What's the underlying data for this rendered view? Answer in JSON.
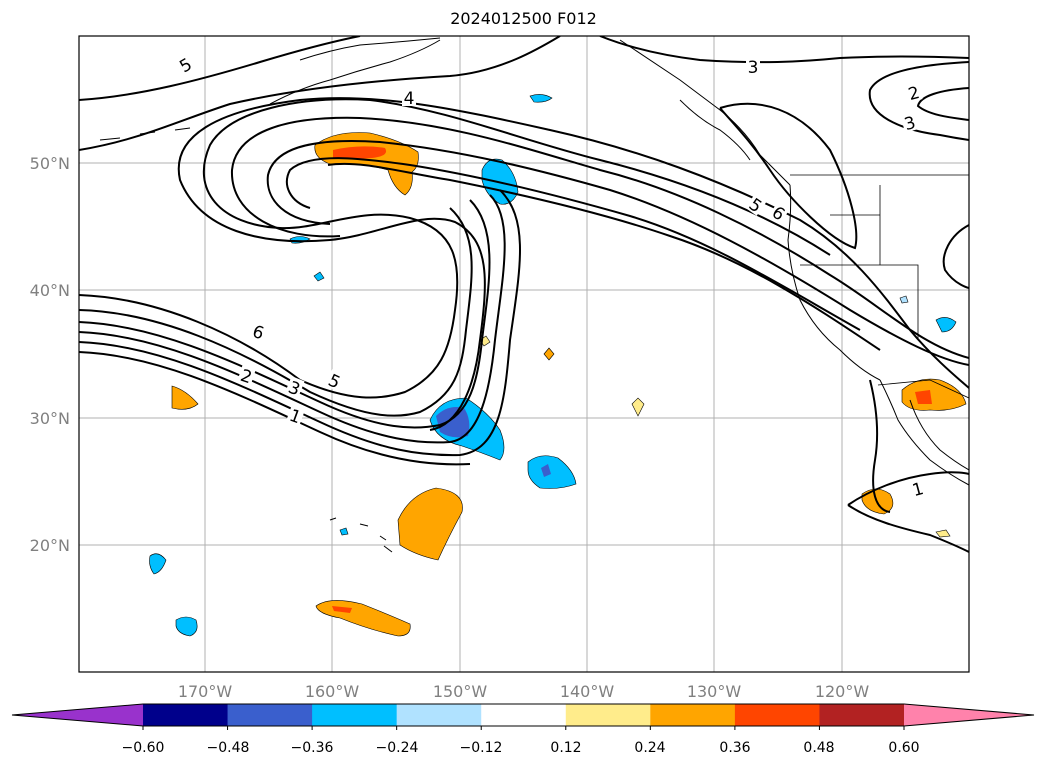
{
  "title": "2024012500 F012",
  "map": {
    "lon_labels": [
      "170°W",
      "160°W",
      "150°W",
      "140°W",
      "130°W",
      "120°W"
    ],
    "lat_labels": [
      "50°N",
      "40°N",
      "30°N",
      "20°N"
    ],
    "contour_labels": [
      "5",
      "4",
      "3",
      "2",
      "3",
      "5",
      "6",
      "6",
      "2",
      "3",
      "5",
      "1",
      "1"
    ]
  },
  "colorbar": {
    "ticks": [
      "−0.60",
      "−0.48",
      "−0.36",
      "−0.24",
      "−0.12",
      "0.12",
      "0.24",
      "0.36",
      "0.48",
      "0.60"
    ],
    "colors": [
      "#9932cc",
      "#00008b",
      "#3a5fcd",
      "#00bfff",
      "#b0e2ff",
      "#ffffff",
      "#ffec8b",
      "#ffa500",
      "#ff4500",
      "#b22222",
      "#ff82ab"
    ]
  }
}
